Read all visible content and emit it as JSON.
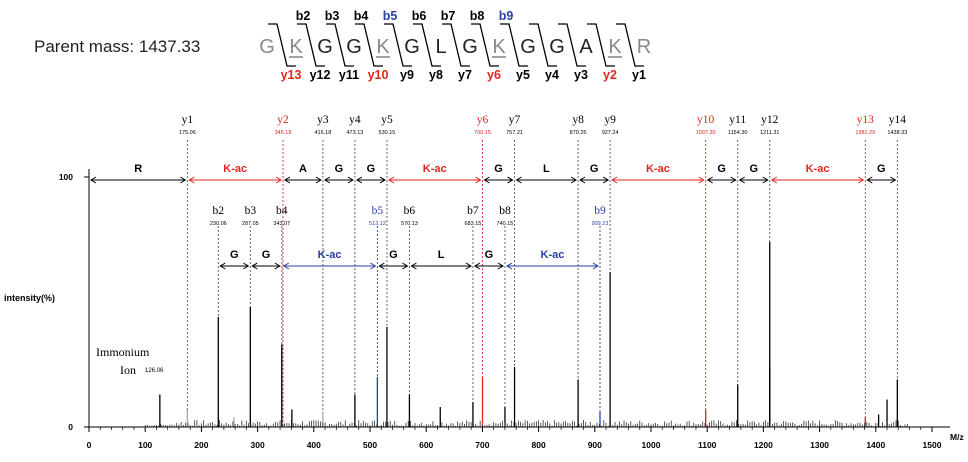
{
  "parent_mass_label": "Parent mass: 1437.33",
  "peptide": {
    "residues": [
      "G",
      "K",
      "G",
      "G",
      "K",
      "G",
      "L",
      "G",
      "K",
      "G",
      "G",
      "A",
      "K",
      "R"
    ],
    "acetylated": [
      false,
      true,
      false,
      false,
      true,
      false,
      false,
      false,
      true,
      false,
      false,
      false,
      true,
      false
    ],
    "b_labels": [
      "b2",
      "b3",
      "b4",
      "b5",
      "b6",
      "b7",
      "b8",
      "b9"
    ],
    "b_colors": [
      "#000000",
      "#000000",
      "#000000",
      "#2a3fa8",
      "#000000",
      "#000000",
      "#000000",
      "#2a3fa8"
    ],
    "y_labels": [
      "y13",
      "y12",
      "y11",
      "y10",
      "y9",
      "y8",
      "y7",
      "y6",
      "y5",
      "y4",
      "y3",
      "y2",
      "y1"
    ],
    "y_colors": [
      "#e0261f",
      "#000000",
      "#000000",
      "#e0261f",
      "#000000",
      "#000000",
      "#000000",
      "#e0261f",
      "#000000",
      "#000000",
      "#000000",
      "#e0261f",
      "#000000"
    ]
  },
  "colors": {
    "black": "#000000",
    "red": "#e0261f",
    "blue": "#2a3fa8",
    "gray": "#8a8a8a"
  },
  "chart_data": {
    "type": "bar",
    "xlabel": "M/z",
    "ylabel": "intensity(%)",
    "xlim": [
      0,
      1500
    ],
    "ylim": [
      0,
      100
    ],
    "x_ticks": [
      0,
      100,
      200,
      300,
      400,
      500,
      600,
      700,
      800,
      900,
      1000,
      1100,
      1200,
      1300,
      1400,
      1500
    ],
    "y_ticks": [
      0,
      100
    ],
    "y_ions": [
      {
        "label": "y1",
        "mz": "175.06",
        "x": 175.06,
        "color": "#000000"
      },
      {
        "label": "y2",
        "mz": "345.18",
        "x": 345.18,
        "color": "#e0261f"
      },
      {
        "label": "y3",
        "mz": "416.18",
        "x": 416.18,
        "color": "#000000"
      },
      {
        "label": "y4",
        "mz": "473.13",
        "x": 473.13,
        "color": "#000000"
      },
      {
        "label": "y5",
        "mz": "530.15",
        "x": 530.15,
        "color": "#000000"
      },
      {
        "label": "y6",
        "mz": "700.15",
        "x": 700.15,
        "color": "#e0261f"
      },
      {
        "label": "y7",
        "mz": "757.21",
        "x": 757.21,
        "color": "#000000"
      },
      {
        "label": "y8",
        "mz": "870.25",
        "x": 870.25,
        "color": "#000000"
      },
      {
        "label": "y9",
        "mz": "927.24",
        "x": 927.24,
        "color": "#000000"
      },
      {
        "label": "y10",
        "mz": "1097.30",
        "x": 1097.3,
        "color": "#e0261f"
      },
      {
        "label": "y11",
        "mz": "1154.30",
        "x": 1154.3,
        "color": "#000000"
      },
      {
        "label": "y12",
        "mz": "1211.31",
        "x": 1211.31,
        "color": "#000000"
      },
      {
        "label": "y13",
        "mz": "1381.29",
        "x": 1381.29,
        "color": "#e0261f"
      },
      {
        "label": "y14",
        "mz": "1438.33",
        "x": 1438.33,
        "color": "#000000"
      }
    ],
    "b_ions": [
      {
        "label": "b2",
        "mz": "230.06",
        "x": 230.06,
        "color": "#000000"
      },
      {
        "label": "b3",
        "mz": "287.05",
        "x": 287.05,
        "color": "#000000"
      },
      {
        "label": "b4",
        "mz": "343.07",
        "x": 343.07,
        "color": "#000000"
      },
      {
        "label": "b5",
        "mz": "513.12",
        "x": 513.12,
        "color": "#2a3fa8"
      },
      {
        "label": "b6",
        "mz": "570.13",
        "x": 570.13,
        "color": "#000000"
      },
      {
        "label": "b7",
        "mz": "683.15",
        "x": 683.15,
        "color": "#000000"
      },
      {
        "label": "b8",
        "mz": "740.15",
        "x": 740.15,
        "color": "#000000"
      },
      {
        "label": "b9",
        "mz": "909.23",
        "x": 909.23,
        "color": "#2a3fa8"
      }
    ],
    "y_gaps": [
      {
        "label": "R",
        "from": 0,
        "to": 175.06,
        "color": "#000000"
      },
      {
        "label": "K-ac",
        "from": 175.06,
        "to": 345.18,
        "color": "#e0261f"
      },
      {
        "label": "A",
        "from": 345.18,
        "to": 416.18,
        "color": "#000000"
      },
      {
        "label": "G",
        "from": 416.18,
        "to": 473.13,
        "color": "#000000"
      },
      {
        "label": "G",
        "from": 473.13,
        "to": 530.15,
        "color": "#000000"
      },
      {
        "label": "K-ac",
        "from": 530.15,
        "to": 700.15,
        "color": "#e0261f"
      },
      {
        "label": "G",
        "from": 700.15,
        "to": 757.21,
        "color": "#000000"
      },
      {
        "label": "L",
        "from": 757.21,
        "to": 870.25,
        "color": "#000000"
      },
      {
        "label": "G",
        "from": 870.25,
        "to": 927.24,
        "color": "#000000"
      },
      {
        "label": "K-ac",
        "from": 927.24,
        "to": 1097.3,
        "color": "#e0261f"
      },
      {
        "label": "G",
        "from": 1097.3,
        "to": 1154.3,
        "color": "#000000"
      },
      {
        "label": "G",
        "from": 1154.3,
        "to": 1211.31,
        "color": "#000000"
      },
      {
        "label": "K-ac",
        "from": 1211.31,
        "to": 1381.29,
        "color": "#e0261f"
      },
      {
        "label": "G",
        "from": 1381.29,
        "to": 1438.33,
        "color": "#000000"
      }
    ],
    "b_gaps": [
      {
        "label": "G",
        "from": 230.06,
        "to": 287.05,
        "color": "#000000"
      },
      {
        "label": "G",
        "from": 287.05,
        "to": 343.07,
        "color": "#000000"
      },
      {
        "label": "K-ac",
        "from": 343.07,
        "to": 513.12,
        "color": "#2a3fa8"
      },
      {
        "label": "G",
        "from": 513.12,
        "to": 570.13,
        "color": "#000000"
      },
      {
        "label": "L",
        "from": 570.13,
        "to": 683.15,
        "color": "#000000"
      },
      {
        "label": "G",
        "from": 683.15,
        "to": 740.15,
        "color": "#000000"
      },
      {
        "label": "K-ac",
        "from": 740.15,
        "to": 909.23,
        "color": "#2a3fa8"
      }
    ],
    "immonium": {
      "label_line1": "Immonium",
      "label_line2": "Ion",
      "mz": "126.06",
      "x": 126.06
    },
    "peaks": [
      {
        "x": 126.06,
        "y": 13,
        "color": "#000000"
      },
      {
        "x": 175.06,
        "y": 7,
        "color": "#aaaaaa"
      },
      {
        "x": 230.06,
        "y": 44,
        "color": "#000000"
      },
      {
        "x": 258,
        "y": 4,
        "color": "#aaaaaa"
      },
      {
        "x": 287.05,
        "y": 48,
        "color": "#000000"
      },
      {
        "x": 343.07,
        "y": 33,
        "color": "#000000"
      },
      {
        "x": 361,
        "y": 7,
        "color": "#000000"
      },
      {
        "x": 416.18,
        "y": 5,
        "color": "#aaaaaa"
      },
      {
        "x": 473.13,
        "y": 13,
        "color": "#000000"
      },
      {
        "x": 513.12,
        "y": 20,
        "color": "#2a3fa8"
      },
      {
        "x": 530.15,
        "y": 40,
        "color": "#000000"
      },
      {
        "x": 570.13,
        "y": 13,
        "color": "#000000"
      },
      {
        "x": 625,
        "y": 8,
        "color": "#000000"
      },
      {
        "x": 683.15,
        "y": 10,
        "color": "#000000"
      },
      {
        "x": 700.15,
        "y": 20,
        "color": "#e0261f"
      },
      {
        "x": 740.15,
        "y": 8,
        "color": "#000000"
      },
      {
        "x": 757.21,
        "y": 24,
        "color": "#000000"
      },
      {
        "x": 870.25,
        "y": 19,
        "color": "#000000"
      },
      {
        "x": 909.23,
        "y": 6,
        "color": "#2a3fa8"
      },
      {
        "x": 927.24,
        "y": 62,
        "color": "#000000"
      },
      {
        "x": 1097.3,
        "y": 7,
        "color": "#e0261f"
      },
      {
        "x": 1154.3,
        "y": 17,
        "color": "#000000"
      },
      {
        "x": 1211.31,
        "y": 74,
        "color": "#000000"
      },
      {
        "x": 1211.31,
        "y": 24,
        "color": "#000000"
      },
      {
        "x": 1381.29,
        "y": 4,
        "color": "#e0261f"
      },
      {
        "x": 1405,
        "y": 5,
        "color": "#000000"
      },
      {
        "x": 1420,
        "y": 11,
        "color": "#000000"
      },
      {
        "x": 1438.33,
        "y": 19,
        "color": "#000000"
      }
    ]
  }
}
